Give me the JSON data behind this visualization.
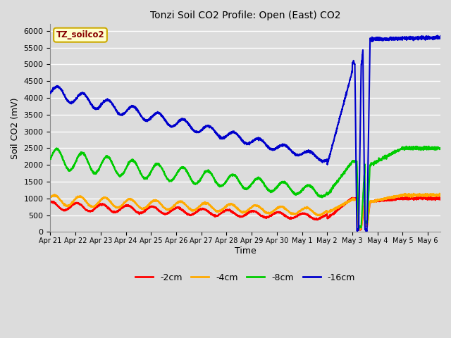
{
  "title": "Tonzi Soil CO2 Profile: Open (East) CO2",
  "ylabel": "Soil CO2 (mV)",
  "xlabel": "Time",
  "ylim": [
    0,
    6200
  ],
  "yticks": [
    0,
    500,
    1000,
    1500,
    2000,
    2500,
    3000,
    3500,
    4000,
    4500,
    5000,
    5500,
    6000
  ],
  "bg_color": "#dcdcdc",
  "plot_bg_color": "#dcdcdc",
  "grid_color": "#ffffff",
  "label_box_text": "TZ_soilco2",
  "label_box_facecolor": "#ffffcc",
  "label_box_edgecolor": "#ccaa00",
  "label_box_textcolor": "#880000",
  "series_colors": {
    "-2cm": "#ff0000",
    "-4cm": "#ffaa00",
    "-8cm": "#00cc00",
    "-16cm": "#0000cc"
  },
  "xtick_labels": [
    "Apr 21",
    "Apr 22",
    "Apr 23",
    "Apr 24",
    "Apr 25",
    "Apr 26",
    "Apr 27",
    "Apr 28",
    "Apr 29",
    "Apr 30",
    "May 1",
    "May 2",
    "May 3",
    "May 4",
    "May 5",
    "May 6"
  ],
  "xlim": [
    0,
    15.5
  ]
}
